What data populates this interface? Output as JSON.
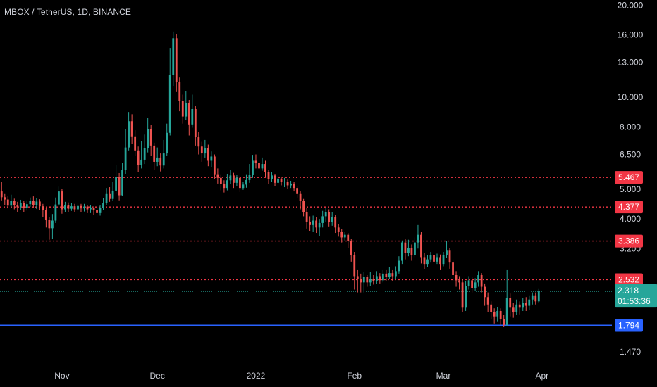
{
  "title": "MBOX / TetherUS, 1D, BINANCE",
  "colors": {
    "background": "#000000",
    "up": "#26a69a",
    "down": "#ef5350",
    "level_line": "#f23645",
    "support_line": "#2962ff",
    "axis_text": "#d1d4dc"
  },
  "chart_data": {
    "type": "candlestick",
    "title": "MBOX / TetherUS, 1D, BINANCE",
    "scale": "log",
    "ylim": [
      1.38,
      20.8
    ],
    "y_ticks": [
      {
        "value": 20.0,
        "label": "20.000"
      },
      {
        "value": 16.0,
        "label": "16.000"
      },
      {
        "value": 13.0,
        "label": "13.000"
      },
      {
        "value": 10.0,
        "label": "10.000"
      },
      {
        "value": 8.0,
        "label": "8.000"
      },
      {
        "value": 6.5,
        "label": "6.500"
      },
      {
        "value": 5.0,
        "label": "5.000"
      },
      {
        "value": 4.0,
        "label": "4.000"
      },
      {
        "value": 3.2,
        "label": "3.200"
      },
      {
        "value": 1.47,
        "label": "1.470"
      }
    ],
    "x_ticks": [
      {
        "index": 19,
        "label": "Nov"
      },
      {
        "index": 49,
        "label": "Dec"
      },
      {
        "index": 80,
        "label": "2022"
      },
      {
        "index": 111,
        "label": "Feb"
      },
      {
        "index": 139,
        "label": "Mar"
      },
      {
        "index": 170,
        "label": "Apr"
      }
    ],
    "xlim": [
      -0.5,
      192
    ],
    "horizontal_levels": [
      {
        "value": 5.467,
        "label": "5.467",
        "style": "dotted",
        "color": "#f23645"
      },
      {
        "value": 4.377,
        "label": "4.377",
        "style": "dotted",
        "color": "#f23645"
      },
      {
        "value": 3.386,
        "label": "3.386",
        "style": "dotted",
        "color": "#f23645"
      },
      {
        "value": 2.532,
        "label": "2.532",
        "style": "dotted",
        "color": "#f23645"
      },
      {
        "value": 1.794,
        "label": "1.794",
        "style": "solid",
        "color": "#2962ff"
      }
    ],
    "current_price": {
      "value": 2.318,
      "label": "2.318",
      "countdown": "01:53:36",
      "color": "#26a69a"
    },
    "candles": [
      [
        4.92,
        4.71,
        5.28,
        4.6
      ],
      [
        4.71,
        4.63,
        4.85,
        4.45
      ],
      [
        4.63,
        4.42,
        4.74,
        4.33
      ],
      [
        4.42,
        4.58,
        4.8,
        4.35
      ],
      [
        4.58,
        4.45,
        4.66,
        4.3
      ],
      [
        4.45,
        4.37,
        4.55,
        4.22
      ],
      [
        4.37,
        4.5,
        4.62,
        4.28
      ],
      [
        4.5,
        4.34,
        4.58,
        4.2
      ],
      [
        4.34,
        4.47,
        4.6,
        4.26
      ],
      [
        4.47,
        4.58,
        4.7,
        4.38
      ],
      [
        4.58,
        4.45,
        4.74,
        4.35
      ],
      [
        4.45,
        4.56,
        4.68,
        4.31
      ],
      [
        4.56,
        4.4,
        4.64,
        4.28
      ],
      [
        4.4,
        4.28,
        4.48,
        4.05
      ],
      [
        4.28,
        3.97,
        4.35,
        3.75
      ],
      [
        3.97,
        3.73,
        4.06,
        3.42
      ],
      [
        3.73,
        3.95,
        4.15,
        3.45
      ],
      [
        3.95,
        4.46,
        4.7,
        3.88
      ],
      [
        4.46,
        4.92,
        5.1,
        4.4
      ],
      [
        4.92,
        4.3,
        5.02,
        4.16
      ],
      [
        4.3,
        4.44,
        4.55,
        4.2
      ],
      [
        4.44,
        4.32,
        4.53,
        4.2
      ],
      [
        4.32,
        4.4,
        4.5,
        4.25
      ],
      [
        4.4,
        4.3,
        4.48,
        4.2
      ],
      [
        4.3,
        4.41,
        4.5,
        4.22
      ],
      [
        4.41,
        4.33,
        4.48,
        4.21
      ],
      [
        4.33,
        4.39,
        4.48,
        4.23
      ],
      [
        4.39,
        4.3,
        4.45,
        4.18
      ],
      [
        4.3,
        4.36,
        4.44,
        4.18
      ],
      [
        4.36,
        4.28,
        4.4,
        4.13
      ],
      [
        4.28,
        4.18,
        4.36,
        4.05
      ],
      [
        4.18,
        4.35,
        4.45,
        4.1
      ],
      [
        4.35,
        4.52,
        4.68,
        4.28
      ],
      [
        4.52,
        4.85,
        5.05,
        4.45
      ],
      [
        4.85,
        4.65,
        5.08,
        4.55
      ],
      [
        4.65,
        4.95,
        5.3,
        4.58
      ],
      [
        4.95,
        5.5,
        6.0,
        4.85
      ],
      [
        5.5,
        4.78,
        5.65,
        4.6
      ],
      [
        4.78,
        5.78,
        6.1,
        4.75
      ],
      [
        5.78,
        6.85,
        7.85,
        5.62
      ],
      [
        6.85,
        8.35,
        8.95,
        6.7
      ],
      [
        8.35,
        7.45,
        8.8,
        7.05
      ],
      [
        7.45,
        6.7,
        7.8,
        6.45
      ],
      [
        6.7,
        6.0,
        6.9,
        5.7
      ],
      [
        6.0,
        6.25,
        7.2,
        5.85
      ],
      [
        6.25,
        6.8,
        7.55,
        6.05
      ],
      [
        6.8,
        7.85,
        8.55,
        6.6
      ],
      [
        7.85,
        6.95,
        8.1,
        6.45
      ],
      [
        6.95,
        6.15,
        7.1,
        5.8
      ],
      [
        6.15,
        6.35,
        6.85,
        5.95
      ],
      [
        6.35,
        5.98,
        6.55,
        5.72
      ],
      [
        5.98,
        6.55,
        7.25,
        5.85
      ],
      [
        6.55,
        7.65,
        8.2,
        6.45
      ],
      [
        7.65,
        11.8,
        14.5,
        7.5
      ],
      [
        11.8,
        15.6,
        16.4,
        10.9
      ],
      [
        15.6,
        11.2,
        16.1,
        10.4
      ],
      [
        11.2,
        9.7,
        11.6,
        9.0
      ],
      [
        9.7,
        8.65,
        10.2,
        8.2
      ],
      [
        8.65,
        9.55,
        10.45,
        8.45
      ],
      [
        9.55,
        8.15,
        9.8,
        7.5
      ],
      [
        8.15,
        9.15,
        10.2,
        7.95
      ],
      [
        9.15,
        7.4,
        9.35,
        6.95
      ],
      [
        7.4,
        6.9,
        7.7,
        6.5
      ],
      [
        6.9,
        6.55,
        7.15,
        6.15
      ],
      [
        6.55,
        6.8,
        7.25,
        6.35
      ],
      [
        6.8,
        6.2,
        7.0,
        5.95
      ],
      [
        6.2,
        6.4,
        6.65,
        5.92
      ],
      [
        6.4,
        5.6,
        6.5,
        5.4
      ],
      [
        5.6,
        5.45,
        5.85,
        5.22
      ],
      [
        5.45,
        5.2,
        5.6,
        4.96
      ],
      [
        5.2,
        5.05,
        5.35,
        4.88
      ],
      [
        5.05,
        5.35,
        5.62,
        4.96
      ],
      [
        5.35,
        5.55,
        5.8,
        5.2
      ],
      [
        5.55,
        5.25,
        5.66,
        5.05
      ],
      [
        5.25,
        5.45,
        5.58,
        5.12
      ],
      [
        5.45,
        5.05,
        5.52,
        4.9
      ],
      [
        5.05,
        5.18,
        5.3,
        4.98
      ],
      [
        5.18,
        5.36,
        5.6,
        5.06
      ],
      [
        5.36,
        5.58,
        6.05,
        5.25
      ],
      [
        5.58,
        6.2,
        6.48,
        5.45
      ],
      [
        6.2,
        6.1,
        6.5,
        5.85
      ],
      [
        6.1,
        5.85,
        6.25,
        5.6
      ],
      [
        5.85,
        6.05,
        6.35,
        5.75
      ],
      [
        6.05,
        5.7,
        6.2,
        5.48
      ],
      [
        5.7,
        5.4,
        5.78,
        5.2
      ],
      [
        5.4,
        5.55,
        5.7,
        5.28
      ],
      [
        5.55,
        5.25,
        5.62,
        5.12
      ],
      [
        5.25,
        5.42,
        5.52,
        5.18
      ],
      [
        5.42,
        5.28,
        5.5,
        5.15
      ],
      [
        5.28,
        5.3,
        5.45,
        5.08
      ],
      [
        5.3,
        5.15,
        5.38,
        5.02
      ],
      [
        5.15,
        5.22,
        5.33,
        5.05
      ],
      [
        5.22,
        5.05,
        5.28,
        4.92
      ],
      [
        5.05,
        4.85,
        5.1,
        4.7
      ],
      [
        4.85,
        4.58,
        4.92,
        4.3
      ],
      [
        4.58,
        4.22,
        4.65,
        4.08
      ],
      [
        4.22,
        3.92,
        4.35,
        3.72
      ],
      [
        3.92,
        3.82,
        4.08,
        3.65
      ],
      [
        3.82,
        3.95,
        4.1,
        3.62
      ],
      [
        3.95,
        3.75,
        4.05,
        3.6
      ],
      [
        3.75,
        3.88,
        4.0,
        3.52
      ],
      [
        3.88,
        4.08,
        4.25,
        3.75
      ],
      [
        4.08,
        4.22,
        4.35,
        3.9
      ],
      [
        4.22,
        3.9,
        4.3,
        3.78
      ],
      [
        3.9,
        4.05,
        4.2,
        3.8
      ],
      [
        4.05,
        3.75,
        4.12,
        3.6
      ],
      [
        3.75,
        3.62,
        3.85,
        3.5
      ],
      [
        3.62,
        3.48,
        3.7,
        3.35
      ],
      [
        3.48,
        3.55,
        3.62,
        3.4
      ],
      [
        3.55,
        3.38,
        3.6,
        3.22
      ],
      [
        3.38,
        3.05,
        3.45,
        2.9
      ],
      [
        3.05,
        2.6,
        3.12,
        2.35
      ],
      [
        2.6,
        2.55,
        2.72,
        2.3
      ],
      [
        2.55,
        2.48,
        2.65,
        2.3
      ],
      [
        2.48,
        2.58,
        2.68,
        2.3
      ],
      [
        2.58,
        2.48,
        2.62,
        2.4
      ],
      [
        2.48,
        2.55,
        2.68,
        2.42
      ],
      [
        2.55,
        2.5,
        2.62,
        2.44
      ],
      [
        2.5,
        2.6,
        2.7,
        2.45
      ],
      [
        2.6,
        2.52,
        2.66,
        2.46
      ],
      [
        2.52,
        2.65,
        2.72,
        2.48
      ],
      [
        2.65,
        2.58,
        2.72,
        2.5
      ],
      [
        2.58,
        2.66,
        2.78,
        2.54
      ],
      [
        2.66,
        2.6,
        2.72,
        2.5
      ],
      [
        2.6,
        2.7,
        2.8,
        2.55
      ],
      [
        2.7,
        2.92,
        3.02,
        2.65
      ],
      [
        2.92,
        3.35,
        3.4,
        2.85
      ],
      [
        3.35,
        3.1,
        3.45,
        2.95
      ],
      [
        3.1,
        3.22,
        3.42,
        3.02
      ],
      [
        3.22,
        3.05,
        3.3,
        2.92
      ],
      [
        3.05,
        3.35,
        3.48,
        3.0
      ],
      [
        3.35,
        3.55,
        3.82,
        3.2
      ],
      [
        3.55,
        3.0,
        3.62,
        2.86
      ],
      [
        3.0,
        2.85,
        3.1,
        2.74
      ],
      [
        2.85,
        2.95,
        3.05,
        2.78
      ],
      [
        2.95,
        3.05,
        3.12,
        2.88
      ],
      [
        3.05,
        2.9,
        3.12,
        2.8
      ],
      [
        2.9,
        3.0,
        3.08,
        2.85
      ],
      [
        3.0,
        2.85,
        3.06,
        2.72
      ],
      [
        2.85,
        3.05,
        3.12,
        2.8
      ],
      [
        3.05,
        3.15,
        3.38,
        2.98
      ],
      [
        3.15,
        2.88,
        3.22,
        2.75
      ],
      [
        2.88,
        2.62,
        2.95,
        2.5
      ],
      [
        2.62,
        2.52,
        2.7,
        2.4
      ],
      [
        2.52,
        2.48,
        2.6,
        2.35
      ],
      [
        2.48,
        2.05,
        2.55,
        1.98
      ],
      [
        2.05,
        2.42,
        2.5,
        2.0
      ],
      [
        2.42,
        2.52,
        2.6,
        2.35
      ],
      [
        2.52,
        2.38,
        2.58,
        2.3
      ],
      [
        2.38,
        2.48,
        2.56,
        2.33
      ],
      [
        2.48,
        2.62,
        2.7,
        2.4
      ],
      [
        2.62,
        2.4,
        2.66,
        2.3
      ],
      [
        2.4,
        2.22,
        2.46,
        2.08
      ],
      [
        2.22,
        2.1,
        2.3,
        1.98
      ],
      [
        2.1,
        1.98,
        2.15,
        1.88
      ],
      [
        1.98,
        1.92,
        2.04,
        1.82
      ],
      [
        1.92,
        2.0,
        2.06,
        1.85
      ],
      [
        2.0,
        1.88,
        2.04,
        1.8
      ],
      [
        1.88,
        1.8,
        1.94,
        1.77
      ],
      [
        1.8,
        2.2,
        2.72,
        1.78
      ],
      [
        2.2,
        2.05,
        2.28,
        1.92
      ],
      [
        2.05,
        1.98,
        2.12,
        1.9
      ],
      [
        1.98,
        2.1,
        2.18,
        1.94
      ],
      [
        2.1,
        2.05,
        2.15,
        1.95
      ],
      [
        2.05,
        2.12,
        2.2,
        2.0
      ],
      [
        2.12,
        2.08,
        2.22,
        2.0
      ],
      [
        2.08,
        2.18,
        2.25,
        2.02
      ],
      [
        2.18,
        2.25,
        2.3,
        2.1
      ],
      [
        2.25,
        2.15,
        2.3,
        2.1
      ],
      [
        2.15,
        2.318,
        2.36,
        2.12
      ]
    ]
  }
}
